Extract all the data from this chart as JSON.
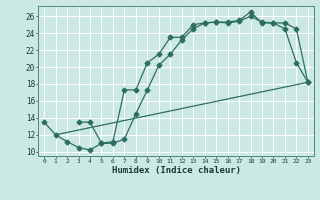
{
  "xlabel": "Humidex (Indice chaleur)",
  "bg_color": "#cce8e5",
  "grid_color": "#ffffff",
  "line_color": "#2e6e62",
  "xlim": [
    -0.5,
    23.5
  ],
  "ylim": [
    9.5,
    27.2
  ],
  "xticks": [
    0,
    1,
    2,
    3,
    4,
    5,
    6,
    7,
    8,
    9,
    10,
    11,
    12,
    13,
    14,
    15,
    16,
    17,
    18,
    19,
    20,
    21,
    22,
    23
  ],
  "yticks": [
    10,
    12,
    14,
    16,
    18,
    20,
    22,
    24,
    26
  ],
  "line1_x": [
    0,
    1,
    2,
    3,
    4,
    5,
    6,
    7,
    8,
    9,
    10,
    11,
    12,
    13,
    14,
    15,
    16,
    17,
    18,
    19,
    20,
    21,
    22,
    23
  ],
  "line1_y": [
    13.5,
    12.0,
    11.2,
    10.5,
    10.2,
    11.0,
    11.0,
    11.5,
    14.5,
    17.3,
    20.2,
    21.5,
    23.2,
    24.5,
    25.2,
    25.3,
    25.2,
    25.4,
    26.0,
    25.3,
    25.2,
    24.5,
    20.5,
    18.2
  ],
  "line2_x": [
    3,
    4,
    5,
    6,
    7,
    8,
    9,
    10,
    11,
    12,
    13,
    14,
    15,
    16,
    17,
    18,
    19,
    20,
    21,
    22,
    23
  ],
  "line2_y": [
    13.5,
    13.5,
    11.0,
    11.2,
    17.3,
    17.3,
    20.5,
    21.5,
    23.5,
    23.5,
    25.0,
    25.2,
    25.3,
    25.3,
    25.5,
    26.5,
    25.2,
    25.2,
    25.2,
    24.5,
    18.2
  ],
  "line3_x": [
    1,
    23
  ],
  "line3_y": [
    12.0,
    18.2
  ]
}
